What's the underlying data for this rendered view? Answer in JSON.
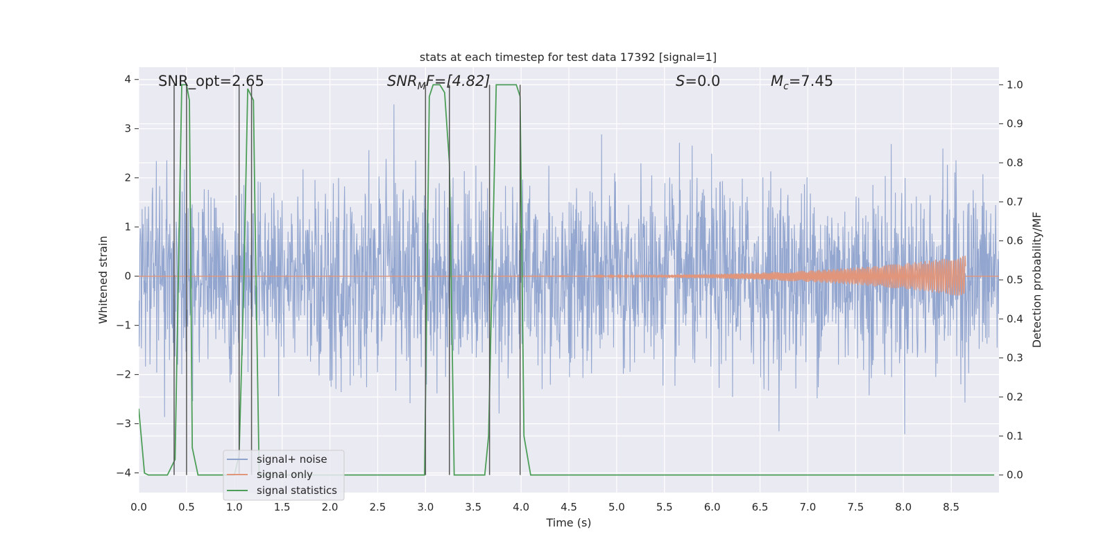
{
  "chart_data": {
    "type": "line",
    "title": "stats at each timestep for test data 17392 [signal=1]",
    "xlabel": "Time (s)",
    "ylabel_left": "Whitened strain",
    "ylabel_right": "Detection probability/MF",
    "xlim": [
      0.0,
      9.0
    ],
    "ylim_left": [
      -4.4,
      4.25
    ],
    "ylim_right": [
      -0.045,
      1.045
    ],
    "x_ticks": [
      0.0,
      0.5,
      1.0,
      1.5,
      2.0,
      2.5,
      3.0,
      3.5,
      4.0,
      4.5,
      5.0,
      5.5,
      6.0,
      6.5,
      7.0,
      7.5,
      8.0,
      8.5
    ],
    "x_tick_labels": [
      "0.0",
      "0.5",
      "1.0",
      "1.5",
      "2.0",
      "2.5",
      "3.0",
      "3.5",
      "4.0",
      "4.5",
      "5.0",
      "5.5",
      "6.0",
      "6.5",
      "7.0",
      "7.5",
      "8.0",
      "8.5"
    ],
    "y_ticks_left": [
      4,
      3,
      2,
      1,
      0,
      -1,
      -2,
      -3,
      -4
    ],
    "y_tick_labels_left": [
      "4",
      "3",
      "2",
      "1",
      "0",
      "−1",
      "−2",
      "−3",
      "−4"
    ],
    "y_ticks_right": [
      1.0,
      0.9,
      0.8,
      0.7,
      0.6,
      0.5,
      0.4,
      0.3,
      0.2,
      0.1,
      0.0
    ],
    "y_tick_labels_right": [
      "1.0",
      "0.9",
      "0.8",
      "0.7",
      "0.6",
      "0.5",
      "0.4",
      "0.3",
      "0.2",
      "0.1",
      "0.0"
    ],
    "grid": true,
    "legend_position": "lower-left",
    "annotations": {
      "snr_opt": "SNR_opt=2.65",
      "snr_mf_base": "SNR",
      "snr_mf_sub": "M",
      "snr_mf_rest": "F=[4.82]",
      "s_stat": "=0.0",
      "s_italic": "S",
      "mc_base": "M",
      "mc_sub": "c",
      "mc_rest": "=7.45"
    },
    "series": [
      {
        "name": "signal+ noise",
        "color": "#8ea2cc",
        "axis": "left",
        "kind": "noise",
        "std": 0.95,
        "n_points": 2300
      },
      {
        "name": "signal only",
        "color": "#e1957a",
        "axis": "left",
        "kind": "chirp",
        "x_end": 8.65,
        "amp_max": 0.42
      },
      {
        "name": "signal statistics",
        "color": "#4c9e57",
        "axis": "right",
        "x": [
          0.0,
          0.06,
          0.1,
          0.18,
          0.3,
          0.38,
          0.45,
          0.5,
          0.53,
          0.56,
          0.62,
          0.7,
          1.0,
          1.05,
          1.1,
          1.14,
          1.2,
          1.22,
          1.26,
          1.5,
          2.99,
          3.04,
          3.08,
          3.15,
          3.2,
          3.25,
          3.3,
          3.36,
          3.42,
          3.62,
          3.66,
          3.74,
          3.8,
          3.95,
          3.99,
          4.03,
          4.1,
          4.2,
          8.95
        ],
        "y": [
          0.17,
          0.005,
          0.0,
          0.0,
          0.0,
          0.04,
          1.0,
          1.0,
          0.96,
          0.07,
          0.0,
          0.0,
          0.0,
          0.05,
          0.5,
          0.99,
          0.96,
          0.6,
          0.0,
          0.0,
          0.0,
          0.97,
          1.0,
          1.0,
          0.98,
          0.8,
          0.0,
          0.0,
          0.0,
          0.0,
          0.1,
          1.0,
          1.0,
          1.0,
          0.97,
          0.1,
          0.0,
          0.0,
          0.0
        ]
      }
    ],
    "vertical_markers": {
      "color": "#555555",
      "x": [
        0.37,
        0.5,
        1.05,
        1.18,
        3.0,
        3.25,
        3.67,
        3.99
      ]
    }
  }
}
